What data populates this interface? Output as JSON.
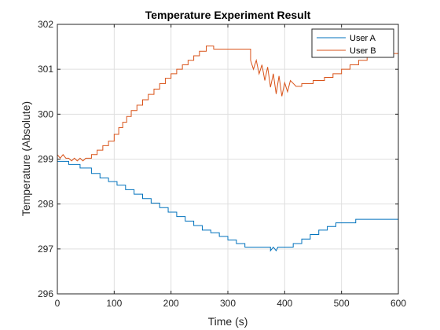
{
  "chart_data": {
    "type": "line",
    "title": "Temperature Experiment Result",
    "xlabel": "Time (s)",
    "ylabel": "Temperature (Absolute)",
    "xlim": [
      0,
      600
    ],
    "ylim": [
      296,
      302
    ],
    "xticks": [
      0,
      100,
      200,
      300,
      400,
      500,
      600
    ],
    "yticks": [
      296,
      297,
      298,
      299,
      300,
      301,
      302
    ],
    "grid": true,
    "legend_position": "top-right",
    "series": [
      {
        "name": "User A",
        "color": "#0072BD",
        "points": [
          [
            0,
            298.95
          ],
          [
            20,
            298.95
          ],
          [
            20,
            298.88
          ],
          [
            40,
            298.88
          ],
          [
            40,
            298.8
          ],
          [
            60,
            298.8
          ],
          [
            60,
            298.68
          ],
          [
            75,
            298.68
          ],
          [
            75,
            298.58
          ],
          [
            90,
            298.58
          ],
          [
            90,
            298.5
          ],
          [
            105,
            298.5
          ],
          [
            105,
            298.42
          ],
          [
            120,
            298.42
          ],
          [
            120,
            298.32
          ],
          [
            135,
            298.32
          ],
          [
            135,
            298.22
          ],
          [
            150,
            298.22
          ],
          [
            150,
            298.12
          ],
          [
            165,
            298.12
          ],
          [
            165,
            298.02
          ],
          [
            180,
            298.02
          ],
          [
            180,
            297.92
          ],
          [
            195,
            297.92
          ],
          [
            195,
            297.82
          ],
          [
            210,
            297.82
          ],
          [
            210,
            297.72
          ],
          [
            225,
            297.72
          ],
          [
            225,
            297.62
          ],
          [
            240,
            297.62
          ],
          [
            240,
            297.52
          ],
          [
            255,
            297.52
          ],
          [
            255,
            297.42
          ],
          [
            270,
            297.42
          ],
          [
            270,
            297.36
          ],
          [
            285,
            297.36
          ],
          [
            285,
            297.28
          ],
          [
            300,
            297.28
          ],
          [
            300,
            297.2
          ],
          [
            315,
            297.2
          ],
          [
            315,
            297.12
          ],
          [
            330,
            297.12
          ],
          [
            330,
            297.04
          ],
          [
            375,
            297.04
          ],
          [
            375,
            296.96
          ],
          [
            380,
            297.04
          ],
          [
            385,
            296.96
          ],
          [
            388,
            297.04
          ],
          [
            415,
            297.04
          ],
          [
            415,
            297.12
          ],
          [
            430,
            297.12
          ],
          [
            430,
            297.22
          ],
          [
            445,
            297.22
          ],
          [
            445,
            297.32
          ],
          [
            460,
            297.32
          ],
          [
            460,
            297.42
          ],
          [
            475,
            297.42
          ],
          [
            475,
            297.5
          ],
          [
            490,
            297.5
          ],
          [
            490,
            297.58
          ],
          [
            525,
            297.58
          ],
          [
            525,
            297.66
          ],
          [
            600,
            297.66
          ]
        ]
      },
      {
        "name": "User B",
        "color": "#D95319",
        "points": [
          [
            0,
            299.1
          ],
          [
            5,
            299.02
          ],
          [
            10,
            299.1
          ],
          [
            15,
            299.02
          ],
          [
            20,
            299.02
          ],
          [
            25,
            298.96
          ],
          [
            30,
            299.02
          ],
          [
            35,
            298.96
          ],
          [
            40,
            299.02
          ],
          [
            45,
            298.96
          ],
          [
            50,
            299.02
          ],
          [
            60,
            299.02
          ],
          [
            60,
            299.1
          ],
          [
            70,
            299.1
          ],
          [
            70,
            299.2
          ],
          [
            80,
            299.2
          ],
          [
            80,
            299.3
          ],
          [
            90,
            299.3
          ],
          [
            90,
            299.4
          ],
          [
            100,
            299.4
          ],
          [
            100,
            299.55
          ],
          [
            108,
            299.55
          ],
          [
            108,
            299.7
          ],
          [
            115,
            299.7
          ],
          [
            115,
            299.82
          ],
          [
            122,
            299.82
          ],
          [
            122,
            299.95
          ],
          [
            130,
            299.95
          ],
          [
            130,
            300.08
          ],
          [
            140,
            300.08
          ],
          [
            140,
            300.2
          ],
          [
            150,
            300.2
          ],
          [
            150,
            300.32
          ],
          [
            160,
            300.32
          ],
          [
            160,
            300.44
          ],
          [
            170,
            300.44
          ],
          [
            170,
            300.56
          ],
          [
            180,
            300.56
          ],
          [
            180,
            300.68
          ],
          [
            190,
            300.68
          ],
          [
            190,
            300.8
          ],
          [
            200,
            300.8
          ],
          [
            200,
            300.9
          ],
          [
            210,
            300.9
          ],
          [
            210,
            301.0
          ],
          [
            220,
            301.0
          ],
          [
            220,
            301.1
          ],
          [
            230,
            301.1
          ],
          [
            230,
            301.2
          ],
          [
            240,
            301.2
          ],
          [
            240,
            301.3
          ],
          [
            250,
            301.3
          ],
          [
            250,
            301.4
          ],
          [
            262,
            301.4
          ],
          [
            262,
            301.52
          ],
          [
            275,
            301.52
          ],
          [
            275,
            301.45
          ],
          [
            340,
            301.45
          ],
          [
            340,
            301.2
          ],
          [
            345,
            301.0
          ],
          [
            350,
            301.2
          ],
          [
            355,
            300.9
          ],
          [
            360,
            301.1
          ],
          [
            365,
            300.75
          ],
          [
            370,
            301.05
          ],
          [
            375,
            300.6
          ],
          [
            380,
            300.9
          ],
          [
            385,
            300.45
          ],
          [
            390,
            300.85
          ],
          [
            395,
            300.4
          ],
          [
            400,
            300.7
          ],
          [
            405,
            300.5
          ],
          [
            410,
            300.75
          ],
          [
            420,
            300.62
          ],
          [
            430,
            300.62
          ],
          [
            430,
            300.68
          ],
          [
            450,
            300.68
          ],
          [
            450,
            300.75
          ],
          [
            470,
            300.75
          ],
          [
            470,
            300.82
          ],
          [
            485,
            300.82
          ],
          [
            485,
            300.9
          ],
          [
            500,
            300.9
          ],
          [
            500,
            301.0
          ],
          [
            515,
            301.0
          ],
          [
            515,
            301.1
          ],
          [
            530,
            301.1
          ],
          [
            530,
            301.2
          ],
          [
            545,
            301.2
          ],
          [
            545,
            301.28
          ],
          [
            560,
            301.28
          ],
          [
            560,
            301.35
          ],
          [
            600,
            301.35
          ]
        ]
      }
    ]
  }
}
